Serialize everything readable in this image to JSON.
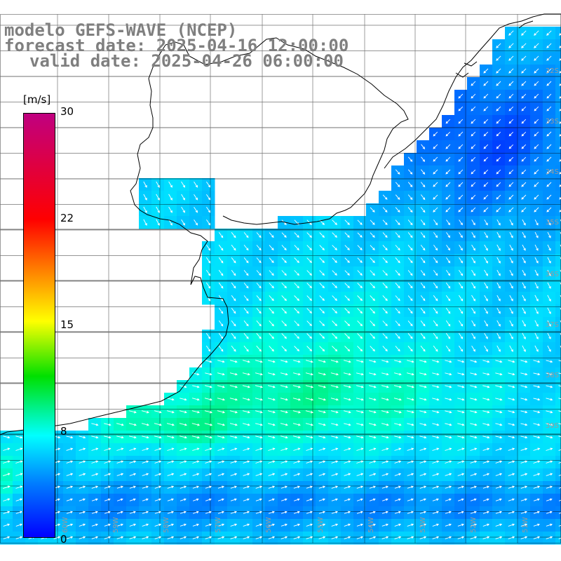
{
  "title": {
    "line1": "modelo GEFS-WAVE (NCEP)",
    "line2": "forecast date: 2025-04-16 12:00:00",
    "line3": "valid date: 2025-04-26 06:00:00"
  },
  "colorbar": {
    "unit": "[m/s]",
    "ticks": [
      "30",
      "22",
      "15",
      "8",
      "0"
    ],
    "colors": [
      "#c00080",
      "#ff0000",
      "#ff8000",
      "#ffff00",
      "#00e000",
      "#00ffff",
      "#0080ff",
      "#0000ff"
    ]
  },
  "lat_labels": [
    "32S",
    "33S",
    "34S",
    "35S",
    "36S",
    "37S",
    "38S",
    "39S"
  ],
  "lon_labels": [
    "60W",
    "59W",
    "58W",
    "57W",
    "56W",
    "55W",
    "54W",
    "53W",
    "52W",
    "51W"
  ],
  "colors": {
    "land": "#ffffff",
    "grid": "#000000",
    "coast": "#000000",
    "arrow": "#ffffff",
    "title": "#7f7f7f"
  }
}
